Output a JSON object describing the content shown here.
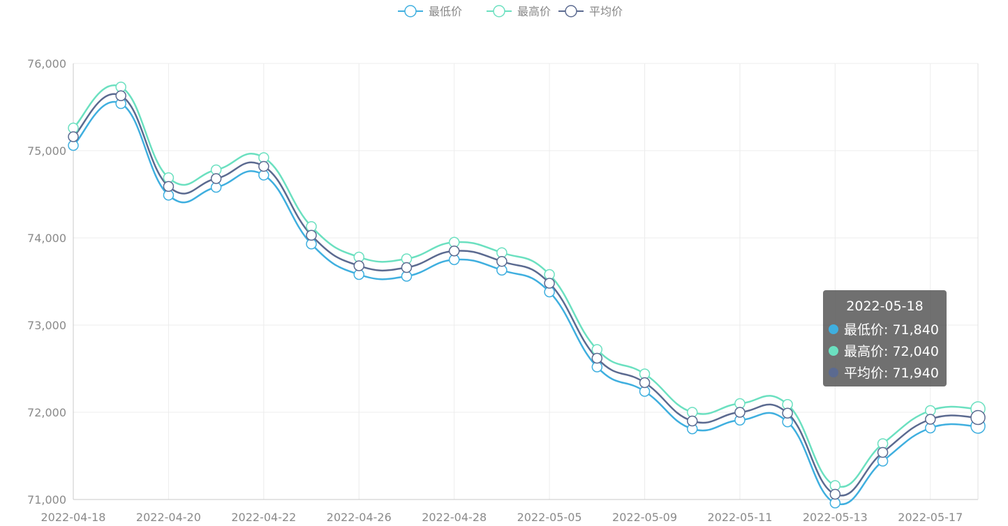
{
  "chart_data": {
    "type": "line",
    "smooth": true,
    "title": "",
    "xlabel": "",
    "ylabel": "",
    "ylim": [
      71000,
      76000
    ],
    "y_ticks": [
      71000,
      72000,
      73000,
      74000,
      75000,
      76000
    ],
    "y_tick_labels": [
      "71,000",
      "72,000",
      "73,000",
      "74,000",
      "75,000",
      "76,000"
    ],
    "legend_position": "top-center",
    "grid": true,
    "x": [
      "2022-04-18",
      "2022-04-19",
      "2022-04-20",
      "2022-04-21",
      "2022-04-22",
      "2022-04-25",
      "2022-04-26",
      "2022-04-27",
      "2022-04-28",
      "2022-04-29",
      "2022-05-05",
      "2022-05-06",
      "2022-05-09",
      "2022-05-10",
      "2022-05-11",
      "2022-05-12",
      "2022-05-13",
      "2022-05-16",
      "2022-05-17",
      "2022-05-18"
    ],
    "x_tick_labels": [
      "2022-04-18",
      "2022-04-20",
      "2022-04-22",
      "2022-04-26",
      "2022-04-28",
      "2022-05-05",
      "2022-05-09",
      "2022-05-11",
      "2022-05-13",
      "2022-05-17"
    ],
    "series": [
      {
        "name": "最低价",
        "color": "#3fafdf",
        "values": [
          75060,
          75540,
          74490,
          74580,
          74720,
          73930,
          73580,
          73560,
          73750,
          73630,
          73380,
          72520,
          72240,
          71810,
          71910,
          71890,
          70960,
          71440,
          71820,
          71840
        ]
      },
      {
        "name": "最高价",
        "color": "#6be0c0",
        "values": [
          75260,
          75730,
          74690,
          74780,
          74920,
          74130,
          73780,
          73760,
          73950,
          73830,
          73580,
          72720,
          72440,
          72000,
          72100,
          72090,
          71160,
          71640,
          72020,
          72040
        ]
      },
      {
        "name": "平均价",
        "color": "#5b6a90",
        "values": [
          75160,
          75630,
          74590,
          74680,
          74820,
          74030,
          73680,
          73660,
          73850,
          73730,
          73480,
          72620,
          72340,
          71900,
          72000,
          71990,
          71060,
          71540,
          71920,
          71940
        ]
      }
    ]
  },
  "tooltip": {
    "title": "2022-05-18",
    "rows": [
      {
        "label": "最低价: 71,840",
        "color": "#3fafdf"
      },
      {
        "label": "最高价: 72,040",
        "color": "#6be0c0"
      },
      {
        "label": "平均价: 71,940",
        "color": "#5b6a90"
      }
    ]
  }
}
